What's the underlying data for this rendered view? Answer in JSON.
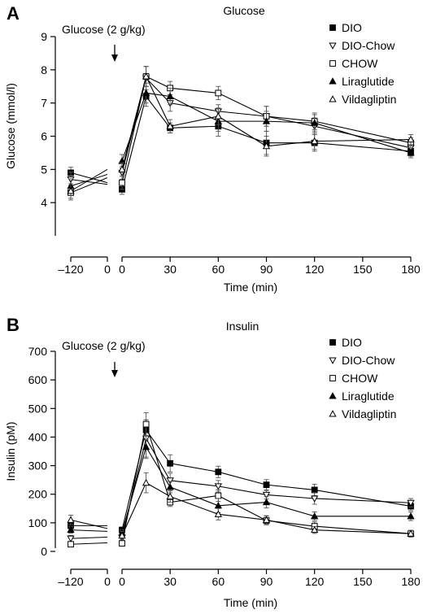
{
  "chart_data": [
    {
      "type": "line",
      "panel": "A",
      "title": "Glucose",
      "xlabel": "Time (min)",
      "ylabel": "Glucose (mmol/l)",
      "ylim": [
        3,
        9
      ],
      "yticks": [
        4,
        5,
        6,
        7,
        8,
        9
      ],
      "xtick_labels": [
        "–120",
        "0",
        "0",
        "30",
        "60",
        "90",
        "120",
        "150",
        "180"
      ],
      "annotation": "Glucose (2 g/kg)",
      "legend_position": "top-right",
      "baseline_x": [
        -120,
        0
      ],
      "x": [
        0,
        15,
        30,
        60,
        90,
        120,
        180
      ],
      "series": [
        {
          "name": "DIO",
          "marker": "filled-square",
          "baseline": [
            4.9,
            4.6
          ],
          "values": [
            4.4,
            7.2,
            6.25,
            6.3,
            5.8,
            5.8,
            5.55
          ],
          "errors": [
            0.15,
            0.3,
            0.15,
            0.3,
            0.35,
            0.25,
            0.15
          ]
        },
        {
          "name": "DIO-Chow",
          "marker": "open-triangle-down",
          "baseline": [
            4.7,
            4.55
          ],
          "values": [
            4.9,
            7.75,
            7.0,
            6.75,
            6.6,
            6.3,
            5.65
          ],
          "errors": [
            0.2,
            0.35,
            0.25,
            0.2,
            0.3,
            0.25,
            0.15
          ]
        },
        {
          "name": "CHOW",
          "marker": "open-square",
          "baseline": [
            4.3,
            4.75
          ],
          "values": [
            4.6,
            7.8,
            7.45,
            7.3,
            6.6,
            6.45,
            5.8
          ],
          "errors": [
            0.2,
            0.3,
            0.2,
            0.2,
            0.3,
            0.25,
            0.15
          ]
        },
        {
          "name": "Liraglutide",
          "marker": "filled-triangle-up",
          "baseline": [
            4.5,
            4.85
          ],
          "values": [
            5.25,
            7.3,
            7.2,
            6.45,
            6.45,
            6.4,
            5.5
          ],
          "errors": [
            0.2,
            0.3,
            0.25,
            0.3,
            0.3,
            0.25,
            0.15
          ]
        },
        {
          "name": "Vildagliptin",
          "marker": "open-triangle-up",
          "baseline": [
            4.35,
            5.0
          ],
          "values": [
            5.0,
            7.8,
            6.3,
            6.6,
            5.7,
            5.85,
            5.9
          ],
          "errors": [
            0.2,
            0.3,
            0.2,
            0.25,
            0.3,
            0.25,
            0.15
          ]
        }
      ]
    },
    {
      "type": "line",
      "panel": "B",
      "title": "Insulin",
      "xlabel": "Time (min)",
      "ylabel": "Insulin (pM)",
      "ylim": [
        0,
        700
      ],
      "yticks": [
        0,
        100,
        200,
        300,
        400,
        500,
        600,
        700
      ],
      "xtick_labels": [
        "–120",
        "0",
        "0",
        "30",
        "60",
        "90",
        "120",
        "150",
        "180"
      ],
      "annotation": "Glucose (2 g/kg)",
      "legend_position": "top-right",
      "baseline_x": [
        -120,
        0
      ],
      "x": [
        0,
        15,
        30,
        60,
        90,
        120,
        180
      ],
      "series": [
        {
          "name": "DIO",
          "marker": "filled-square",
          "baseline": [
            90,
            90
          ],
          "values": [
            75,
            425,
            308,
            278,
            233,
            215,
            158
          ],
          "errors": [
            10,
            35,
            30,
            20,
            18,
            20,
            15
          ]
        },
        {
          "name": "DIO-Chow",
          "marker": "open-triangle-down",
          "baseline": [
            45,
            50
          ],
          "values": [
            48,
            395,
            248,
            228,
            198,
            185,
            170
          ],
          "errors": [
            10,
            65,
            25,
            20,
            15,
            20,
            15
          ]
        },
        {
          "name": "CHOW",
          "marker": "open-square",
          "baseline": [
            25,
            30
          ],
          "values": [
            28,
            445,
            172,
            195,
            108,
            88,
            62
          ],
          "errors": [
            5,
            40,
            15,
            20,
            15,
            15,
            12
          ]
        },
        {
          "name": "Liraglutide",
          "marker": "filled-triangle-up",
          "baseline": [
            75,
            70
          ],
          "values": [
            65,
            365,
            225,
            160,
            172,
            123,
            123
          ],
          "errors": [
            10,
            40,
            20,
            25,
            20,
            15,
            15
          ]
        },
        {
          "name": "Vildagliptin",
          "marker": "open-triangle-up",
          "baseline": [
            110,
            80
          ],
          "values": [
            55,
            240,
            192,
            130,
            110,
            75,
            62
          ],
          "errors": [
            15,
            35,
            20,
            20,
            15,
            12,
            10
          ]
        }
      ]
    }
  ]
}
